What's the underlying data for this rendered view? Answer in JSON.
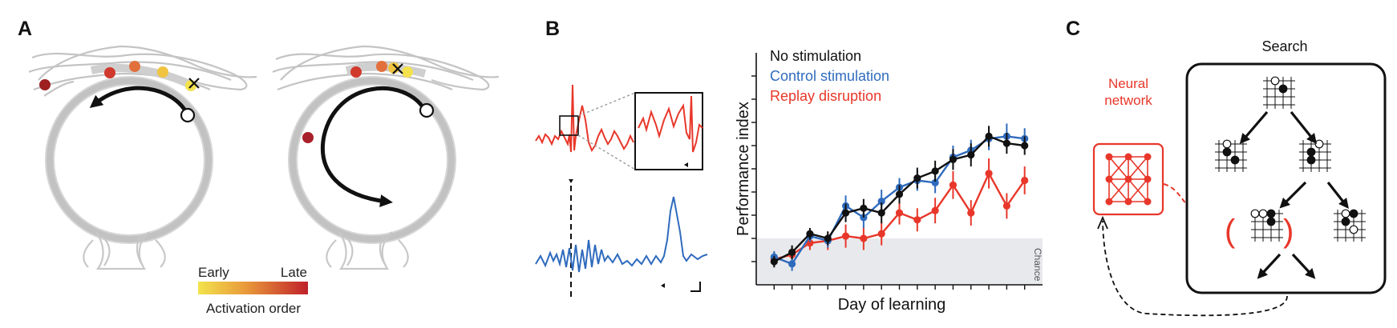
{
  "panels": {
    "a": {
      "label": "A",
      "colorbar": {
        "early": "Early",
        "late": "Late",
        "caption": "Activation order",
        "color_start": "#f2e34c",
        "color_end": "#c0202a"
      }
    },
    "b": {
      "label": "B",
      "traces": {
        "top_color": "#e8372a",
        "bottom_color": "#2f6bbd"
      }
    },
    "c": {
      "label": "C",
      "neural_network": "Neural\nnetwork",
      "search": "Search",
      "accent": "#e8372a"
    }
  },
  "chart_data": {
    "type": "line",
    "title": "",
    "xlabel": "Day of learning",
    "ylabel": "Performance index",
    "ylim": [
      0,
      10
    ],
    "chance": {
      "label": "Chance",
      "upper": 2.0
    },
    "x": [
      1,
      2,
      3,
      4,
      5,
      6,
      7,
      8,
      9,
      10,
      11,
      12,
      13,
      14,
      15
    ],
    "legend_position": "top-left",
    "series": [
      {
        "name": "No stimulation",
        "color": "#111111",
        "values": [
          1.0,
          1.4,
          2.2,
          2.0,
          3.1,
          3.3,
          3.1,
          3.9,
          4.6,
          4.9,
          5.4,
          5.6,
          6.4,
          6.1,
          6.0
        ],
        "err": [
          0.25,
          0.3,
          0.25,
          0.3,
          0.4,
          0.4,
          0.45,
          0.4,
          0.45,
          0.45,
          0.45,
          0.5,
          0.45,
          0.45,
          0.4
        ]
      },
      {
        "name": "Control stimulation",
        "color": "#2f6bbd",
        "values": [
          1.2,
          0.9,
          2.1,
          1.9,
          3.4,
          2.9,
          3.6,
          4.2,
          4.5,
          4.4,
          5.5,
          5.8,
          6.3,
          6.4,
          6.3
        ],
        "err": [
          0.25,
          0.3,
          0.25,
          0.3,
          0.45,
          0.45,
          0.5,
          0.4,
          0.45,
          0.45,
          0.5,
          0.45,
          0.5,
          0.55,
          0.45
        ]
      },
      {
        "name": "Replay disruption",
        "color": "#e8372a",
        "values": [
          1.1,
          1.3,
          1.8,
          1.9,
          2.1,
          2.0,
          2.2,
          3.1,
          2.8,
          3.2,
          4.3,
          3.1,
          4.8,
          3.4,
          4.5
        ],
        "err": [
          0.3,
          0.35,
          0.3,
          0.4,
          0.5,
          0.5,
          0.5,
          0.5,
          0.5,
          0.55,
          0.6,
          0.55,
          0.65,
          0.55,
          0.6
        ]
      }
    ]
  }
}
